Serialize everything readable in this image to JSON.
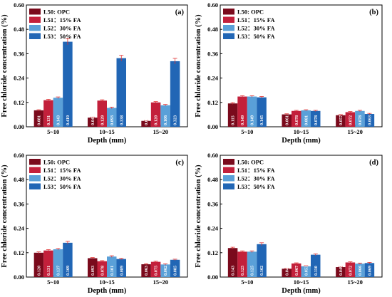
{
  "chart_data": [
    {
      "type": "bar",
      "panel_label": "(a)",
      "xlabel": "Depth (mm)",
      "ylabel": "Free chloride concentration (%)",
      "ylim": [
        0,
        0.6
      ],
      "yticks": [
        "0.00",
        "0.12",
        "0.24",
        "0.36",
        "0.48",
        "0.60"
      ],
      "categories": [
        "5~10",
        "10~15",
        "15~20"
      ],
      "legend_position": "top-left",
      "series": [
        {
          "name": "L50:  OPC",
          "color": "#7a0a1c",
          "values": [
            0.081,
            0.045,
            0.029
          ],
          "errors": [
            0.003,
            0.003,
            0.002
          ],
          "labels": [
            "0.081",
            "0.045",
            "0.029"
          ]
        },
        {
          "name": "L51：15% FA",
          "color": "#c3203b",
          "values": [
            0.131,
            0.129,
            0.12
          ],
          "errors": [
            0.004,
            0.004,
            0.004
          ],
          "labels": [
            "0.131",
            "0.129",
            "0.120"
          ]
        },
        {
          "name": "L52：30% FA",
          "color": "#5aa0d8",
          "values": [
            0.143,
            0.093,
            0.106
          ],
          "errors": [
            0.004,
            0.004,
            0.004
          ],
          "labels": [
            "0.143",
            "0.093",
            "0.106"
          ]
        },
        {
          "name": "L53：50% FA",
          "color": "#2166b5",
          "values": [
            0.419,
            0.338,
            0.323
          ],
          "errors": [
            0.015,
            0.014,
            0.014
          ],
          "labels": [
            "0.419",
            "0.338",
            "0.323"
          ]
        }
      ]
    },
    {
      "type": "bar",
      "panel_label": "(b)",
      "xlabel": "Depth (mm)",
      "ylabel": "Free chloride concentration (%)",
      "ylim": [
        0,
        0.6
      ],
      "yticks": [
        "0.00",
        "0.12",
        "0.24",
        "0.36",
        "0.48",
        "0.60"
      ],
      "categories": [
        "5~10",
        "10~15",
        "15~20"
      ],
      "legend_position": "top-left",
      "series": [
        {
          "name": "L50:  OPC",
          "color": "#7a0a1c",
          "values": [
            0.115,
            0.061,
            0.057
          ],
          "errors": [
            0.004,
            0.003,
            0.003
          ],
          "labels": [
            "0.115",
            "0.061",
            "0.057"
          ]
        },
        {
          "name": "L51：15% FA",
          "color": "#c3203b",
          "values": [
            0.149,
            0.078,
            0.072
          ],
          "errors": [
            0.004,
            0.003,
            0.003
          ],
          "labels": [
            "0.149",
            "0.078",
            "0.072"
          ]
        },
        {
          "name": "L52：30% FA",
          "color": "#5aa0d8",
          "values": [
            0.149,
            0.081,
            0.078
          ],
          "errors": [
            0.004,
            0.003,
            0.003
          ],
          "labels": [
            "0.149",
            "0.081",
            "0.078"
          ]
        },
        {
          "name": "L53：50% FA",
          "color": "#2166b5",
          "values": [
            0.145,
            0.078,
            0.063
          ],
          "errors": [
            0.004,
            0.003,
            0.003
          ],
          "labels": [
            "0.145",
            "0.078",
            "0.063"
          ]
        }
      ]
    },
    {
      "type": "bar",
      "panel_label": "(c)",
      "xlabel": "Depth (mm)",
      "ylabel": "Free chloride concentration (%)",
      "ylim": [
        0,
        0.6
      ],
      "yticks": [
        "0.00",
        "0.12",
        "0.24",
        "0.36",
        "0.48",
        "0.60"
      ],
      "categories": [
        "5~10",
        "10~15",
        "15~20"
      ],
      "legend_position": "top-left",
      "series": [
        {
          "name": "L50:  OPC",
          "color": "#7a0a1c",
          "values": [
            0.12,
            0.093,
            0.063
          ],
          "errors": [
            0.004,
            0.003,
            0.003
          ],
          "labels": [
            "0.120",
            "0.093",
            "0.063"
          ]
        },
        {
          "name": "L51：15% FA",
          "color": "#c3203b",
          "values": [
            0.131,
            0.078,
            0.075
          ],
          "errors": [
            0.004,
            0.003,
            0.003
          ],
          "labels": [
            "0.131",
            "0.078",
            "0.075"
          ]
        },
        {
          "name": "L52：30% FA",
          "color": "#5aa0d8",
          "values": [
            0.137,
            0.101,
            0.062
          ],
          "errors": [
            0.004,
            0.004,
            0.003
          ],
          "labels": [
            "0.137",
            "0.101",
            "0.062"
          ]
        },
        {
          "name": "L53：50% FA",
          "color": "#2166b5",
          "values": [
            0.169,
            0.089,
            0.085
          ],
          "errors": [
            0.007,
            0.003,
            0.003
          ],
          "labels": [
            "0.169",
            "0.089",
            "0.085"
          ]
        }
      ]
    },
    {
      "type": "bar",
      "panel_label": "(d)",
      "xlabel": "Depth (mm)",
      "ylabel": "Free chloride concentration (%)",
      "ylim": [
        0,
        0.6
      ],
      "yticks": [
        "0.00",
        "0.12",
        "0.24",
        "0.36",
        "0.48",
        "0.60"
      ],
      "categories": [
        "5~10",
        "10~15",
        "15~20"
      ],
      "legend_position": "top-left",
      "series": [
        {
          "name": "L50:  OPC",
          "color": "#7a0a1c",
          "values": [
            0.143,
            0.041,
            0.049
          ],
          "errors": [
            0.004,
            0.003,
            0.003
          ],
          "labels": [
            "0.143",
            "0.041",
            "0.049"
          ]
        },
        {
          "name": "L51：15% FA",
          "color": "#c3203b",
          "values": [
            0.125,
            0.067,
            0.072
          ],
          "errors": [
            0.004,
            0.003,
            0.003
          ],
          "labels": [
            "0.125",
            "0.067",
            "0.072"
          ]
        },
        {
          "name": "L52：30% FA",
          "color": "#5aa0d8",
          "values": [
            0.125,
            0.053,
            0.066
          ],
          "errors": [
            0.004,
            0.003,
            0.003
          ],
          "labels": [
            "0.125",
            "0.053",
            "0.066"
          ]
        },
        {
          "name": "L53：50% FA",
          "color": "#2166b5",
          "values": [
            0.162,
            0.11,
            0.069
          ],
          "errors": [
            0.007,
            0.004,
            0.003
          ],
          "labels": [
            "0.162",
            "0.110",
            "0.069"
          ]
        }
      ]
    }
  ]
}
